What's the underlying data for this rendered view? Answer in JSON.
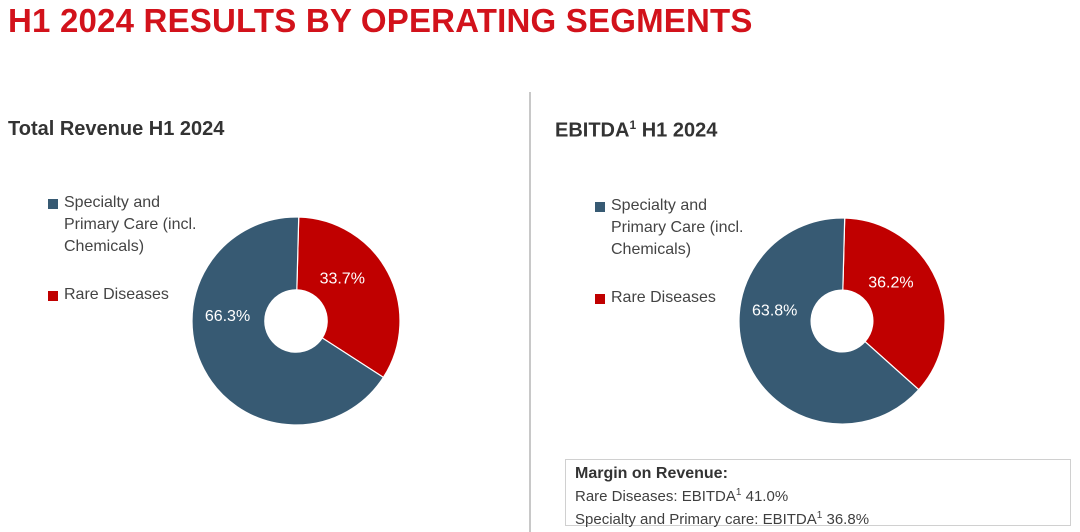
{
  "page_title": "H1 2024 RESULTS BY OPERATING SEGMENTS",
  "colors": {
    "title": "#d2121b",
    "specialty": "#375a73",
    "rare": "#c00000"
  },
  "chart_data": [
    {
      "type": "pie",
      "variant": "donut",
      "title": "Total Revenue H1 2024",
      "legend_position": "left",
      "categories": [
        "Specialty and Primary Care (incl. Chemicals)",
        "Rare Diseases"
      ],
      "values": [
        66.3,
        33.7
      ],
      "labels": [
        "66.3%",
        "33.7%"
      ],
      "colors": [
        "#375a73",
        "#c00000"
      ]
    },
    {
      "type": "pie",
      "variant": "donut",
      "title": "EBITDA H1 2024",
      "title_main": "EBITDA",
      "title_sup": "1",
      "title_rest": " H1 2024",
      "legend_position": "left",
      "categories": [
        "Specialty and Primary Care (incl. Chemicals)",
        "Rare Diseases"
      ],
      "values": [
        63.8,
        36.2
      ],
      "labels": [
        "63.8%",
        "36.2%"
      ],
      "colors": [
        "#375a73",
        "#c00000"
      ]
    }
  ],
  "left_panel": {
    "title": "Total Revenue H1 2024",
    "legend": [
      {
        "line1": "Specialty and",
        "line2": "Primary Care (incl.",
        "line3": "Chemicals)"
      },
      {
        "line1": "Rare Diseases"
      }
    ]
  },
  "right_panel": {
    "title_main": "EBITDA",
    "title_sup": "1",
    "title_rest": " H1 2024",
    "legend": [
      {
        "line1": "Specialty and",
        "line2": "Primary Care (incl.",
        "line3": "Chemicals)"
      },
      {
        "line1": "Rare Diseases"
      }
    ]
  },
  "margin_box": {
    "header": "Margin on Revenue:",
    "rows": [
      {
        "label": "Rare Diseases: EBITDA",
        "sup": "1",
        "value": " 41.0%"
      },
      {
        "label": "Specialty and Primary care: EBITDA",
        "sup": "1",
        "value": " 36.8%"
      }
    ]
  }
}
